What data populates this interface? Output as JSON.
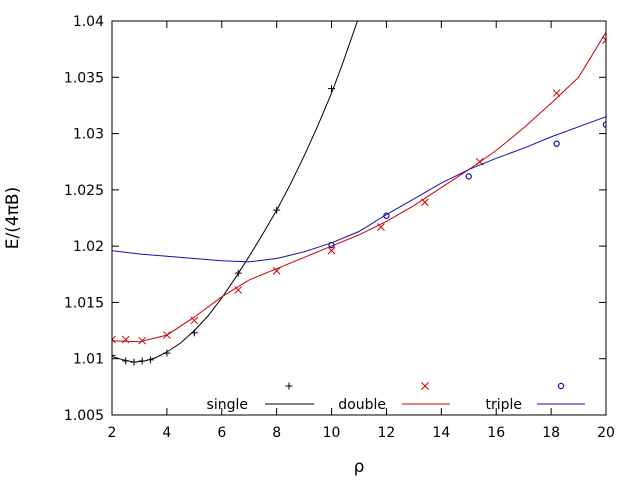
{
  "chart_data": {
    "type": "scatter",
    "xlabel": "ρ",
    "ylabel": "E/(4πB)",
    "xlim": [
      2,
      20
    ],
    "ylim": [
      1.005,
      1.04
    ],
    "x_ticks": [
      2,
      4,
      6,
      8,
      10,
      12,
      14,
      16,
      18,
      20
    ],
    "y_ticks": [
      1.005,
      1.01,
      1.015,
      1.02,
      1.025,
      1.03,
      1.035,
      1.04
    ],
    "x_tick_labels": [
      "2",
      "4",
      "6",
      "8",
      "10",
      "12",
      "14",
      "16",
      "18",
      "20"
    ],
    "y_tick_labels": [
      "1.005",
      "1.01",
      "1.015",
      "1.02",
      "1.025",
      "1.03",
      "1.035",
      "1.04"
    ],
    "grid": false,
    "legend_position": "bottom",
    "series": [
      {
        "name": "single",
        "color": "#000000",
        "marker": "plus",
        "points": [
          [
            2.0,
            1.0103
          ],
          [
            2.5,
            1.0098
          ],
          [
            2.8,
            1.0097
          ],
          [
            3.1,
            1.0098
          ],
          [
            3.4,
            1.0099
          ],
          [
            4.0,
            1.0105
          ],
          [
            5.0,
            1.0123
          ],
          [
            6.6,
            1.0176
          ],
          [
            8.0,
            1.0232
          ],
          [
            10.0,
            1.034
          ]
        ],
        "curve": [
          [
            2.0,
            1.0102
          ],
          [
            2.4,
            1.0099
          ],
          [
            2.8,
            1.0097
          ],
          [
            3.2,
            1.0098
          ],
          [
            3.6,
            1.0101
          ],
          [
            4.0,
            1.0106
          ],
          [
            4.5,
            1.0114
          ],
          [
            5.0,
            1.0125
          ],
          [
            5.5,
            1.0138
          ],
          [
            6.0,
            1.0154
          ],
          [
            6.5,
            1.0172
          ],
          [
            7.0,
            1.0191
          ],
          [
            7.5,
            1.0211
          ],
          [
            8.0,
            1.0232
          ],
          [
            8.5,
            1.0255
          ],
          [
            9.0,
            1.028
          ],
          [
            9.5,
            1.0307
          ],
          [
            10.0,
            1.0336
          ],
          [
            10.4,
            1.0362
          ],
          [
            10.8,
            1.039
          ],
          [
            11.0,
            1.0404
          ]
        ]
      },
      {
        "name": "double",
        "color": "#cc0000",
        "marker": "cross",
        "points": [
          [
            2.0,
            1.0117
          ],
          [
            2.5,
            1.0117
          ],
          [
            3.1,
            1.0116
          ],
          [
            4.0,
            1.0121
          ],
          [
            5.0,
            1.0134
          ],
          [
            6.6,
            1.0161
          ],
          [
            8.0,
            1.0178
          ],
          [
            10.0,
            1.0196
          ],
          [
            11.8,
            1.0217
          ],
          [
            13.4,
            1.0239
          ],
          [
            15.4,
            1.0275
          ],
          [
            18.2,
            1.0336
          ],
          [
            20.0,
            1.0383
          ]
        ],
        "curve": [
          [
            2.0,
            1.0116
          ],
          [
            3.0,
            1.0115
          ],
          [
            4.0,
            1.0121
          ],
          [
            5.0,
            1.0137
          ],
          [
            6.0,
            1.0155
          ],
          [
            7.0,
            1.017
          ],
          [
            8.0,
            1.018
          ],
          [
            9.0,
            1.019
          ],
          [
            10.0,
            1.02
          ],
          [
            11.0,
            1.021
          ],
          [
            12.0,
            1.0222
          ],
          [
            13.0,
            1.0236
          ],
          [
            14.0,
            1.0252
          ],
          [
            15.0,
            1.0268
          ],
          [
            16.0,
            1.0285
          ],
          [
            17.0,
            1.0305
          ],
          [
            18.0,
            1.0327
          ],
          [
            19.0,
            1.035
          ],
          [
            20.0,
            1.039
          ]
        ]
      },
      {
        "name": "triple",
        "color": "#1010b0",
        "marker": "circle",
        "points": [
          [
            10.0,
            1.0201
          ],
          [
            12.0,
            1.0227
          ],
          [
            15.0,
            1.0262
          ],
          [
            18.2,
            1.0291
          ],
          [
            20.0,
            1.0308
          ]
        ],
        "curve": [
          [
            2.0,
            1.0196
          ],
          [
            3.0,
            1.0193
          ],
          [
            4.0,
            1.0191
          ],
          [
            5.0,
            1.0189
          ],
          [
            6.0,
            1.0187
          ],
          [
            7.0,
            1.0186
          ],
          [
            8.0,
            1.0189
          ],
          [
            9.0,
            1.0195
          ],
          [
            10.0,
            1.0203
          ],
          [
            11.0,
            1.0213
          ],
          [
            12.0,
            1.0228
          ],
          [
            13.0,
            1.0242
          ],
          [
            14.0,
            1.0256
          ],
          [
            15.0,
            1.0268
          ],
          [
            16.0,
            1.0278
          ],
          [
            17.0,
            1.0287
          ],
          [
            18.0,
            1.0297
          ],
          [
            19.0,
            1.0306
          ],
          [
            20.0,
            1.0315
          ]
        ]
      }
    ]
  }
}
